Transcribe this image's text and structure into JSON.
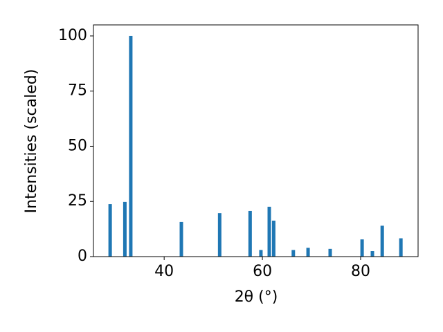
{
  "chart_data": {
    "type": "bar",
    "xlabel": "2θ (°)",
    "ylabel": "Intensities (scaled)",
    "x": [
      29.0,
      32.0,
      33.2,
      43.5,
      51.3,
      57.5,
      59.7,
      61.4,
      62.3,
      66.3,
      69.3,
      73.8,
      80.3,
      82.4,
      84.4,
      88.2
    ],
    "values": [
      23.8,
      24.8,
      100,
      15.7,
      19.7,
      20.7,
      3,
      22.6,
      16.3,
      3,
      4,
      3.5,
      7.8,
      2.5,
      14,
      8.3
    ],
    "color": "#1f77b4",
    "xlim": [
      25.6,
      91.7
    ],
    "ylim": [
      0,
      105
    ],
    "xticks": [
      40,
      60,
      80
    ],
    "yticks": [
      0,
      25,
      50,
      75,
      100
    ],
    "grid": false
  }
}
